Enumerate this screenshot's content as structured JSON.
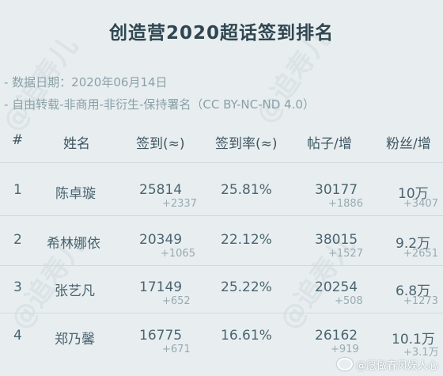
{
  "title": "创造营2020超话签到排名",
  "meta": {
    "date_line": "- 数据日期：2020年06月14日",
    "license_line": "- 自由转载-非商用-非衍生-保持署名（CC BY-NC-ND 4.0）"
  },
  "columns": [
    "#",
    "姓名",
    "签到(≈)",
    "签到率(≈)",
    "帖子/增",
    "粉丝/增"
  ],
  "rows": [
    {
      "rank": "1",
      "name": "陈卓璇",
      "checkins": "25814",
      "checkins_delta": "+2337",
      "rate": "25.81%",
      "posts": "30177",
      "posts_delta": "+1886",
      "fans": "10万",
      "fans_delta": "+3407"
    },
    {
      "rank": "2",
      "name": "希林娜依",
      "checkins": "20349",
      "checkins_delta": "+1065",
      "rate": "22.12%",
      "posts": "38015",
      "posts_delta": "+1527",
      "fans": "9.2万",
      "fans_delta": "+2651"
    },
    {
      "rank": "3",
      "name": "张艺凡",
      "checkins": "17149",
      "checkins_delta": "+652",
      "rate": "25.22%",
      "posts": "20254",
      "posts_delta": "+508",
      "fans": "6.8万",
      "fans_delta": "+1273"
    },
    {
      "rank": "4",
      "name": "郑乃馨",
      "checkins": "16775",
      "checkins_delta": "+671",
      "rate": "16.61%",
      "posts": "26162",
      "posts_delta": "+919",
      "fans": "10.1万",
      "fans_delta": "+3.1万"
    }
  ],
  "watermark": "@追寿儿",
  "weibo_credit": "@愿做春风娱人心"
}
